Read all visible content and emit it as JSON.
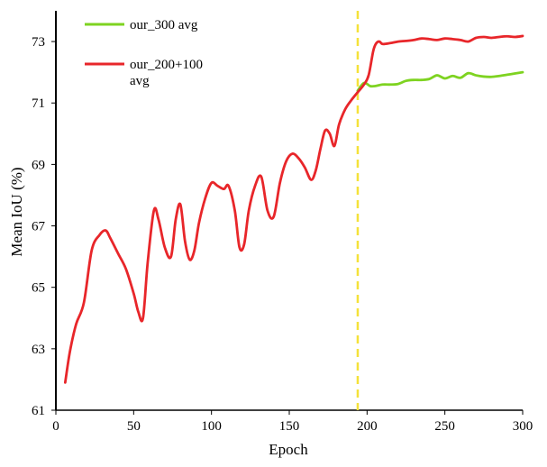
{
  "chart_data": {
    "type": "line",
    "xlabel": "Epoch",
    "ylabel": "Mean IoU (%)",
    "xlim": [
      0,
      300
    ],
    "ylim": [
      61,
      74
    ],
    "xticks": [
      0,
      50,
      100,
      150,
      200,
      250,
      300
    ],
    "yticks": [
      61,
      63,
      65,
      67,
      69,
      71,
      73
    ],
    "grid": false,
    "legend_position": "top-left",
    "vline": {
      "x": 194,
      "color": "#f5e23a"
    },
    "series": [
      {
        "name": "our_300 avg",
        "color": "#7ed321",
        "x": [
          194,
          196,
          198,
          200,
          202,
          205,
          210,
          215,
          220,
          225,
          230,
          235,
          240,
          245,
          250,
          255,
          260,
          265,
          270,
          275,
          280,
          285,
          290,
          295,
          300
        ],
        "y": [
          71.4,
          71.55,
          71.65,
          71.62,
          71.55,
          71.55,
          71.6,
          71.6,
          71.62,
          71.72,
          71.75,
          71.75,
          71.78,
          71.9,
          71.8,
          71.88,
          71.82,
          71.97,
          71.9,
          71.86,
          71.85,
          71.88,
          71.92,
          71.96,
          72.0
        ]
      },
      {
        "name": "our_200+100 avg",
        "color": "#e8262a",
        "x": [
          6,
          9,
          13,
          18,
          23,
          28,
          32,
          35,
          40,
          45,
          50,
          53,
          56,
          59,
          63,
          66,
          70,
          74,
          77,
          80,
          83,
          86,
          89,
          92,
          96,
          100,
          104,
          108,
          111,
          115,
          118,
          121,
          124,
          128,
          132,
          136,
          140,
          144,
          148,
          152,
          156,
          160,
          164,
          167,
          170,
          173,
          176,
          179,
          182,
          186,
          190,
          194,
          198,
          201,
          204,
          206,
          208,
          210,
          215,
          220,
          225,
          230,
          235,
          240,
          245,
          250,
          255,
          260,
          265,
          270,
          275,
          280,
          285,
          290,
          295,
          300
        ],
        "y": [
          61.9,
          62.9,
          63.8,
          64.5,
          66.2,
          66.7,
          66.85,
          66.6,
          66.1,
          65.6,
          64.8,
          64.2,
          64.0,
          65.8,
          67.5,
          67.2,
          66.3,
          66.0,
          67.2,
          67.7,
          66.5,
          65.9,
          66.2,
          67.1,
          67.9,
          68.4,
          68.3,
          68.2,
          68.3,
          67.5,
          66.3,
          66.4,
          67.5,
          68.3,
          68.6,
          67.5,
          67.3,
          68.4,
          69.1,
          69.35,
          69.2,
          68.9,
          68.5,
          68.8,
          69.5,
          70.1,
          70.0,
          69.6,
          70.3,
          70.8,
          71.1,
          71.35,
          71.6,
          71.9,
          72.7,
          72.95,
          73.0,
          72.92,
          72.95,
          73.0,
          73.02,
          73.05,
          73.1,
          73.08,
          73.05,
          73.1,
          73.08,
          73.05,
          73.0,
          73.12,
          73.15,
          73.12,
          73.15,
          73.17,
          73.15,
          73.18
        ]
      }
    ]
  }
}
